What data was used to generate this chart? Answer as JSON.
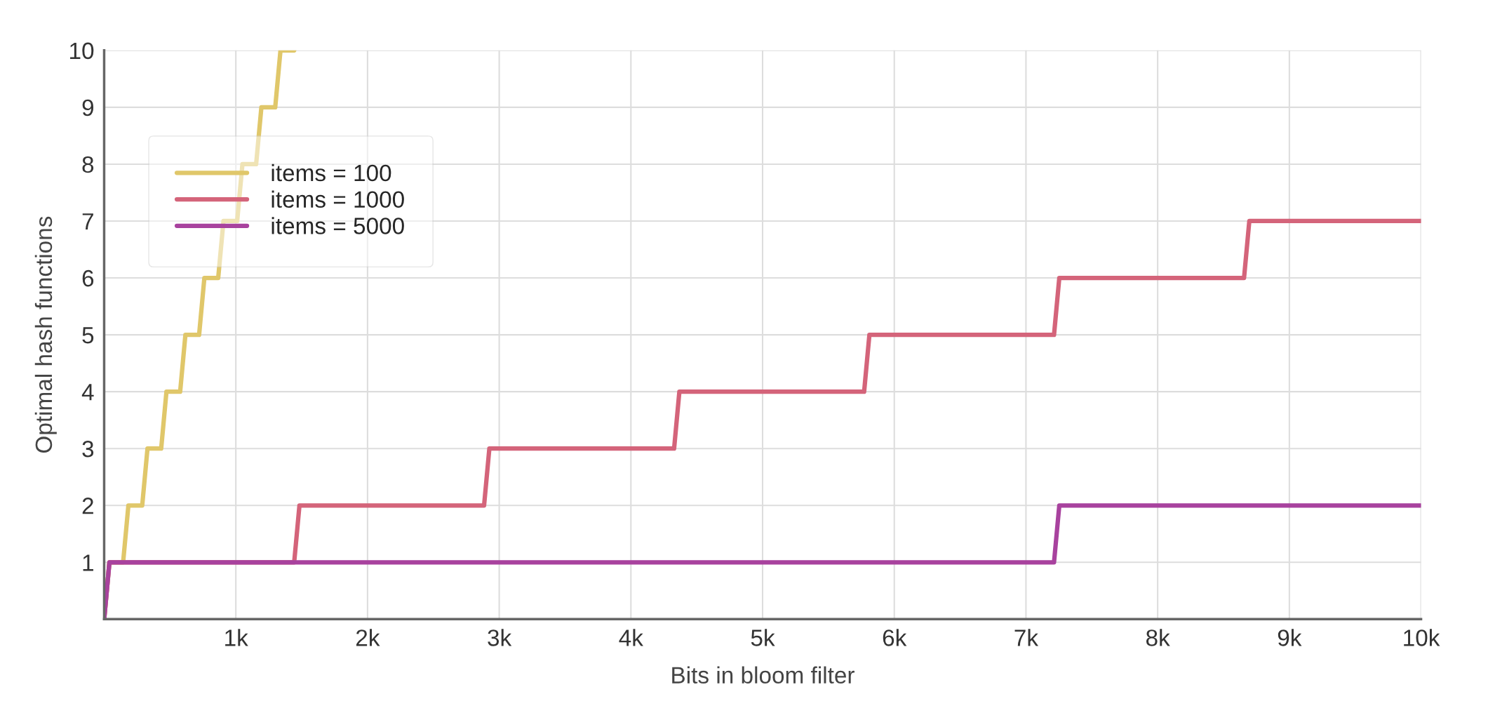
{
  "chart_data": {
    "type": "line",
    "xlabel": "Bits in bloom filter",
    "ylabel": "Optimal hash functions",
    "xlim": [
      0,
      10000
    ],
    "ylim": [
      0,
      10
    ],
    "xticks": [
      {
        "value": 0,
        "label": null
      },
      {
        "value": 1000,
        "label": "1k"
      },
      {
        "value": 2000,
        "label": "2k"
      },
      {
        "value": 3000,
        "label": "3k"
      },
      {
        "value": 4000,
        "label": "4k"
      },
      {
        "value": 5000,
        "label": "5k"
      },
      {
        "value": 6000,
        "label": "6k"
      },
      {
        "value": 7000,
        "label": "7k"
      },
      {
        "value": 8000,
        "label": "8k"
      },
      {
        "value": 9000,
        "label": "9k"
      },
      {
        "value": 10000,
        "label": "10k"
      }
    ],
    "yticks": [
      {
        "value": 0,
        "label": null
      },
      1,
      2,
      3,
      4,
      5,
      6,
      7,
      8,
      9,
      10
    ],
    "grid": true,
    "legend": "top left",
    "marker": "none",
    "line_style": "solid",
    "series": [
      {
        "name": "items = 100",
        "color": "#e0c76a",
        "x": [
          0,
          40,
          144,
          184,
          289,
          329,
          433,
          473,
          577,
          617,
          721,
          761,
          866,
          906,
          1010,
          1050,
          1154,
          1194,
          1299,
          1339,
          1443
        ],
        "values": [
          0,
          1,
          1,
          2,
          2,
          3,
          3,
          4,
          4,
          5,
          5,
          6,
          6,
          7,
          7,
          8,
          8,
          9,
          9,
          10,
          10
        ]
      },
      {
        "name": "items = 1000",
        "color": "#d4647a",
        "x": [
          0,
          40,
          1443,
          1483,
          2885,
          2925,
          4328,
          4368,
          5771,
          5811,
          7213,
          7253,
          8656,
          8696,
          10000
        ],
        "values": [
          0,
          1,
          1,
          2,
          2,
          3,
          3,
          4,
          4,
          5,
          5,
          6,
          6,
          7,
          7
        ]
      },
      {
        "name": "items = 5000",
        "color": "#a8429e",
        "x": [
          0,
          40,
          7213,
          7253,
          10000
        ],
        "values": [
          0,
          1,
          1,
          2,
          2
        ]
      }
    ]
  }
}
